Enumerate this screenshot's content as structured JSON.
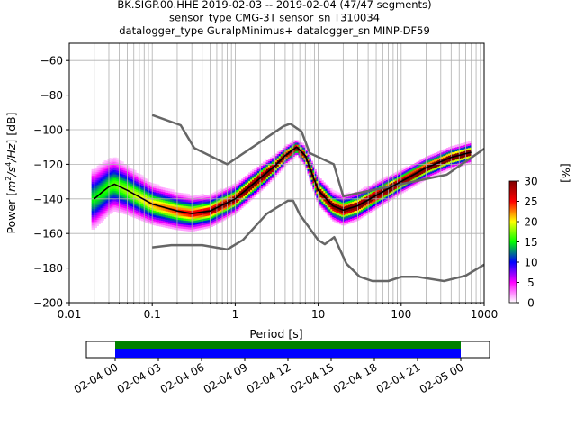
{
  "chart_data": {
    "type": "heatmap",
    "title": [
      "BK.SIGP.00.HHE   2019-02-03 -- 2019-02-04  (47/47 segments)",
      "sensor_type CMG-3T sensor_sn T310034",
      "datalogger_type GuralpMinimus+ datalogger_sn MINP-DF59"
    ],
    "xlabel": "Period [s]",
    "ylabel_pre": "Power [",
    "ylabel_m": "m",
    "ylabel_s": "/s",
    "ylabel_hz": "/Hz",
    "ylabel_post": "] [dB]",
    "ylabel_sup2": "2",
    "ylabel_sup4": "4",
    "x_scale": "log",
    "xlim": [
      0.01,
      1000
    ],
    "ylim": [
      -200,
      -50
    ],
    "xticks": [
      0.01,
      0.1,
      1,
      10,
      100,
      1000
    ],
    "xtick_labels": [
      "0.01",
      "0.1",
      "1",
      "10",
      "100",
      "1000"
    ],
    "yticks": [
      -60,
      -80,
      -100,
      -120,
      -140,
      -160,
      -180,
      -200
    ],
    "ytick_labels": [
      "−60",
      "−80",
      "−100",
      "−120",
      "−140",
      "−160",
      "−180",
      "−200"
    ],
    "grid": true,
    "colorbar": {
      "label": "[%]",
      "range": [
        0,
        30
      ],
      "ticks": [
        0,
        5,
        10,
        15,
        20,
        25,
        30
      ],
      "tick_labels": [
        "0",
        "5",
        "10",
        "15",
        "20",
        "25",
        "30"
      ],
      "colors": [
        "#ffffff",
        "#ff00ff",
        "#0000ff",
        "#00ff00",
        "#ffff00",
        "#ff0000",
        "#800000"
      ]
    },
    "noise_models": {
      "color": "#666666",
      "high": [
        [
          0.1,
          -91.5
        ],
        [
          0.22,
          -97.4
        ],
        [
          0.32,
          -110.5
        ],
        [
          0.8,
          -120
        ],
        [
          3.8,
          -98
        ],
        [
          4.6,
          -96.5
        ],
        [
          6.3,
          -101
        ],
        [
          7.9,
          -113.5
        ],
        [
          15.4,
          -120
        ],
        [
          20,
          -138.5
        ],
        [
          354.8,
          -126
        ],
        [
          1000,
          -111
        ]
      ],
      "low": [
        [
          0.1,
          -168
        ],
        [
          0.17,
          -166.7
        ],
        [
          0.4,
          -166.7
        ],
        [
          0.8,
          -169.2
        ],
        [
          1.24,
          -163.7
        ],
        [
          2.4,
          -148.6
        ],
        [
          4.3,
          -141.1
        ],
        [
          5,
          -141.1
        ],
        [
          6,
          -149
        ],
        [
          10,
          -163.8
        ],
        [
          12,
          -166.2
        ],
        [
          15.6,
          -162.1
        ],
        [
          21.9,
          -177.5
        ],
        [
          31.6,
          -185
        ],
        [
          45,
          -187.5
        ],
        [
          70,
          -187.5
        ],
        [
          101,
          -185
        ],
        [
          154,
          -185
        ],
        [
          328,
          -187.5
        ],
        [
          600,
          -184.4
        ],
        [
          1000,
          -178
        ]
      ]
    },
    "mean_psd": {
      "color": "#000000",
      "points": [
        [
          0.02,
          -140
        ],
        [
          0.025,
          -136
        ],
        [
          0.03,
          -133
        ],
        [
          0.035,
          -131.5
        ],
        [
          0.05,
          -135
        ],
        [
          0.1,
          -143
        ],
        [
          0.2,
          -147
        ],
        [
          0.3,
          -148.5
        ],
        [
          0.5,
          -147
        ],
        [
          1,
          -140
        ],
        [
          2,
          -128
        ],
        [
          3,
          -121
        ],
        [
          4,
          -115
        ],
        [
          5.5,
          -110
        ],
        [
          7,
          -115
        ],
        [
          10,
          -135
        ],
        [
          15,
          -144
        ],
        [
          20,
          -146.5
        ],
        [
          30,
          -144
        ],
        [
          50,
          -138
        ],
        [
          100,
          -130
        ],
        [
          200,
          -122
        ],
        [
          400,
          -116
        ],
        [
          700,
          -113
        ]
      ]
    },
    "time_axis": {
      "tick_labels": [
        "02-04 00",
        "02-04 03",
        "02-04 06",
        "02-04 09",
        "02-04 12",
        "02-04 15",
        "02-04 18",
        "02-04 21",
        "02-05 00"
      ],
      "data_start_hour": 0,
      "data_end_hour": 24,
      "span_start_hour": -2,
      "span_end_hour": 26,
      "colors": [
        "#008000",
        "#0000ff"
      ]
    }
  }
}
